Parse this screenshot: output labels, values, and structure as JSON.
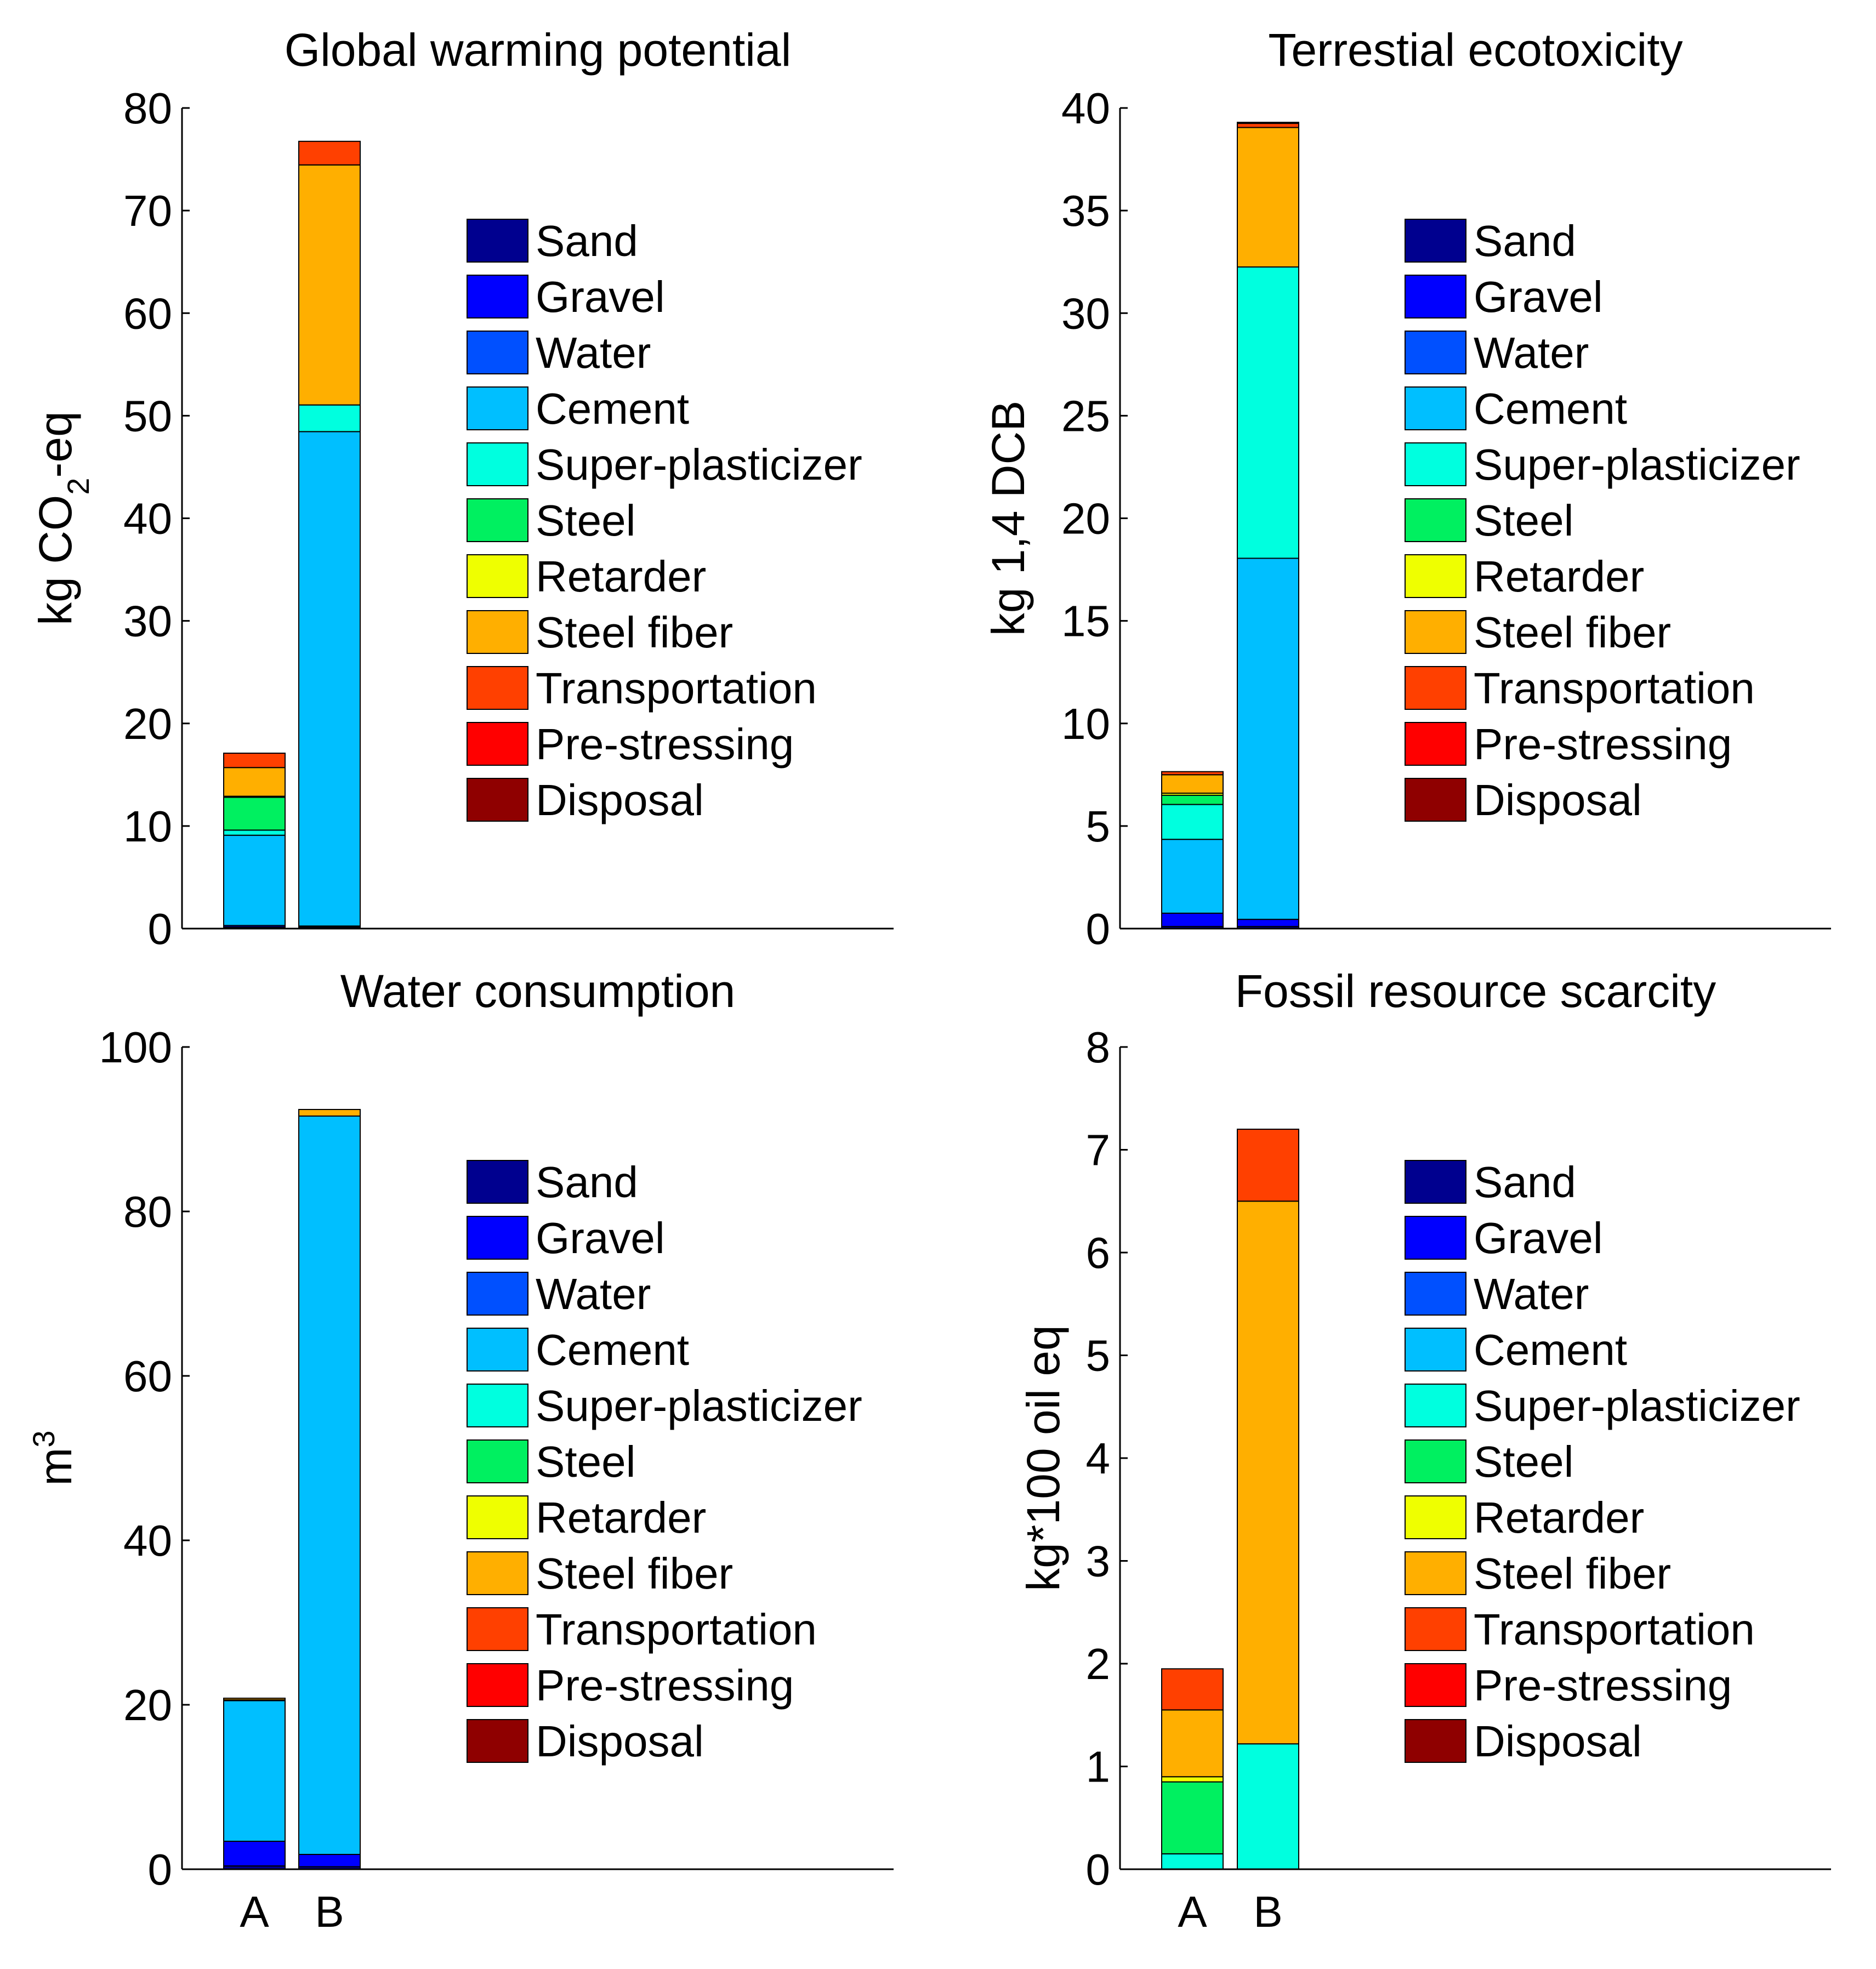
{
  "legend": {
    "items": [
      "Sand",
      "Gravel",
      "Water",
      "Cement",
      "Super-plasticizer",
      "Steel",
      "Retarder",
      "Steel fiber",
      "Transportation",
      "Pre-stressing",
      "Disposal"
    ],
    "colors": [
      "#00008F",
      "#0000FF",
      "#0050FF",
      "#00BFFF",
      "#00FFDF",
      "#00F060",
      "#EFFF00",
      "#FFAF00",
      "#FF4000",
      "#FF0000",
      "#8F0000"
    ]
  },
  "chart_data": [
    {
      "type": "bar",
      "stacked": true,
      "title": "Global warming potential",
      "ylabel": "kg CO₂-eq",
      "ylabel_parts": {
        "pre": "kg CO",
        "sub": "2",
        "post": "-eq"
      },
      "categories": [
        "A",
        "B"
      ],
      "show_xticklabels": false,
      "ylim": [
        0,
        80
      ],
      "yticks": [
        0,
        10,
        20,
        30,
        40,
        50,
        60,
        70,
        80
      ],
      "ytick_labels": [
        "0",
        "10",
        "20",
        "30",
        "40",
        "50",
        "60",
        "70",
        "80"
      ],
      "series": [
        {
          "name": "Sand",
          "values": [
            0.15,
            0.15
          ]
        },
        {
          "name": "Gravel",
          "values": [
            0.15,
            0.1
          ]
        },
        {
          "name": "Water",
          "values": [
            0.0,
            0.0
          ]
        },
        {
          "name": "Cement",
          "values": [
            8.8,
            48.2
          ]
        },
        {
          "name": "Super-plasticizer",
          "values": [
            0.5,
            2.6
          ]
        },
        {
          "name": "Steel",
          "values": [
            3.2,
            0.0
          ]
        },
        {
          "name": "Retarder",
          "values": [
            0.1,
            0.0
          ]
        },
        {
          "name": "Steel fiber",
          "values": [
            2.8,
            23.4
          ]
        },
        {
          "name": "Transportation",
          "values": [
            1.4,
            2.3
          ]
        },
        {
          "name": "Pre-stressing",
          "values": [
            0.0,
            0.0
          ]
        },
        {
          "name": "Disposal",
          "values": [
            0.0,
            0.0
          ]
        }
      ]
    },
    {
      "type": "bar",
      "stacked": true,
      "title": "Terrestial ecotoxicity",
      "ylabel": "kg 1,4 DCB",
      "categories": [
        "A",
        "B"
      ],
      "show_xticklabels": false,
      "ylim": [
        0,
        40
      ],
      "yticks": [
        0,
        5,
        10,
        15,
        20,
        25,
        30,
        35,
        40
      ],
      "ytick_labels": [
        "0",
        "5",
        "10",
        "15",
        "20",
        "25",
        "30",
        "35",
        "40"
      ],
      "series": [
        {
          "name": "Sand",
          "values": [
            0.1,
            0.1
          ]
        },
        {
          "name": "Gravel",
          "values": [
            0.65,
            0.35
          ]
        },
        {
          "name": "Water",
          "values": [
            0.0,
            0.0
          ]
        },
        {
          "name": "Cement",
          "values": [
            3.6,
            17.6
          ]
        },
        {
          "name": "Super-plasticizer",
          "values": [
            1.7,
            14.2
          ]
        },
        {
          "name": "Steel",
          "values": [
            0.45,
            0.0
          ]
        },
        {
          "name": "Retarder",
          "values": [
            0.1,
            0.0
          ]
        },
        {
          "name": "Steel fiber",
          "values": [
            0.9,
            6.8
          ]
        },
        {
          "name": "Transportation",
          "values": [
            0.15,
            0.2
          ]
        },
        {
          "name": "Pre-stressing",
          "values": [
            0.0,
            0.0
          ]
        },
        {
          "name": "Disposal",
          "values": [
            0.0,
            0.05
          ]
        }
      ]
    },
    {
      "type": "bar",
      "stacked": true,
      "title": "Water consumption",
      "ylabel": "m³",
      "ylabel_parts": {
        "pre": "m",
        "sup": "3"
      },
      "categories": [
        "A",
        "B"
      ],
      "show_xticklabels": true,
      "ylim": [
        0,
        100
      ],
      "yticks": [
        0,
        20,
        40,
        60,
        80,
        100
      ],
      "ytick_labels": [
        "0",
        "20",
        "40",
        "60",
        "80",
        "100"
      ],
      "series": [
        {
          "name": "Sand",
          "values": [
            0.4,
            0.3
          ]
        },
        {
          "name": "Gravel",
          "values": [
            3.0,
            1.5
          ]
        },
        {
          "name": "Water",
          "values": [
            0.0,
            0.0
          ]
        },
        {
          "name": "Cement",
          "values": [
            17.1,
            89.8
          ]
        },
        {
          "name": "Super-plasticizer",
          "values": [
            0.0,
            0.0
          ]
        },
        {
          "name": "Steel",
          "values": [
            0.1,
            0.0
          ]
        },
        {
          "name": "Retarder",
          "values": [
            0.0,
            0.0
          ]
        },
        {
          "name": "Steel fiber",
          "values": [
            0.2,
            0.8
          ]
        },
        {
          "name": "Transportation",
          "values": [
            0.0,
            0.0
          ]
        },
        {
          "name": "Pre-stressing",
          "values": [
            0.0,
            0.0
          ]
        },
        {
          "name": "Disposal",
          "values": [
            0.0,
            0.0
          ]
        }
      ]
    },
    {
      "type": "bar",
      "stacked": true,
      "title": "Fossil resource scarcity",
      "ylabel": "kg*100 oil eq",
      "categories": [
        "A",
        "B"
      ],
      "show_xticklabels": true,
      "ylim": [
        0,
        8
      ],
      "yticks": [
        0,
        1,
        2,
        3,
        4,
        5,
        6,
        7,
        8
      ],
      "ytick_labels": [
        "0",
        "1",
        "2",
        "3",
        "4",
        "5",
        "6",
        "7",
        "8"
      ],
      "series": [
        {
          "name": "Sand",
          "values": [
            0.0,
            0.0
          ]
        },
        {
          "name": "Gravel",
          "values": [
            0.0,
            0.0
          ]
        },
        {
          "name": "Water",
          "values": [
            0.0,
            0.0
          ]
        },
        {
          "name": "Cement",
          "values": [
            0.0,
            0.0
          ]
        },
        {
          "name": "Super-plasticizer",
          "values": [
            0.15,
            1.22
          ]
        },
        {
          "name": "Steel",
          "values": [
            0.7,
            0.0
          ]
        },
        {
          "name": "Retarder",
          "values": [
            0.05,
            0.0
          ]
        },
        {
          "name": "Steel fiber",
          "values": [
            0.65,
            5.28
          ]
        },
        {
          "name": "Transportation",
          "values": [
            0.4,
            0.7
          ]
        },
        {
          "name": "Pre-stressing",
          "values": [
            0.0,
            0.0
          ]
        },
        {
          "name": "Disposal",
          "values": [
            0.0,
            0.0
          ]
        }
      ]
    }
  ]
}
